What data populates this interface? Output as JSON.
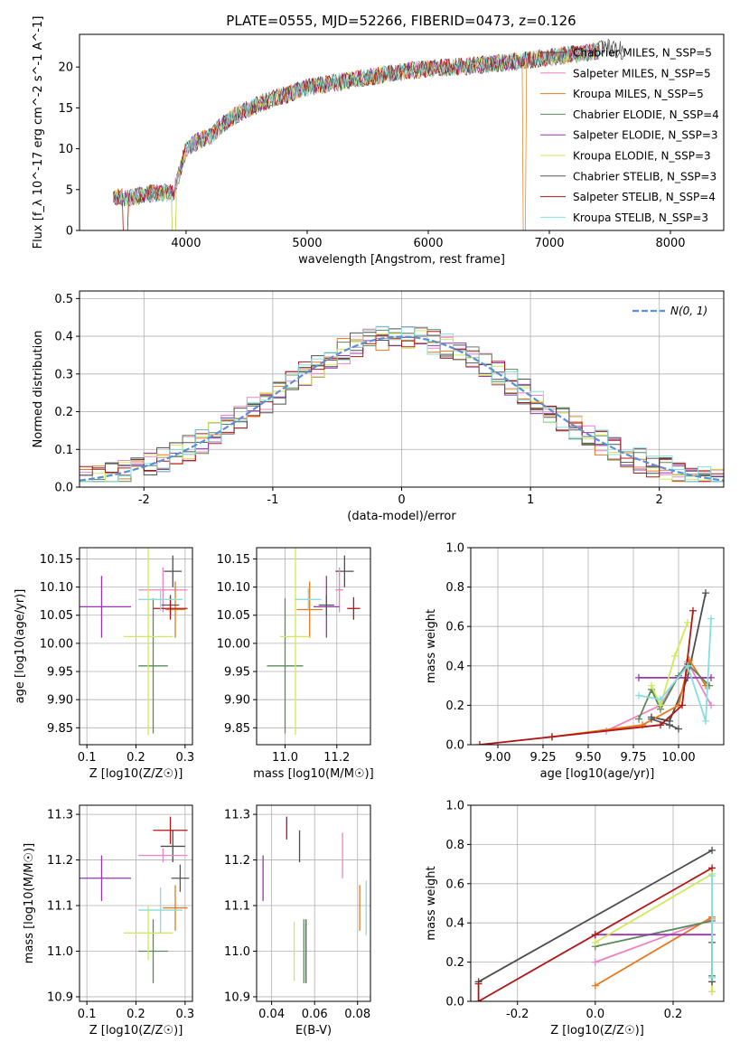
{
  "title": "PLATE=0555, MJD=52266, FIBERID=0473, z=0.126",
  "models": [
    {
      "name": "Chabrier MILES, N_SSP=5",
      "color": "#4d4d4d"
    },
    {
      "name": "Salpeter MILES, N_SSP=5",
      "color": "#ee82c3"
    },
    {
      "name": "Kroupa MILES, N_SSP=5",
      "color": "#e8781c"
    },
    {
      "name": "Chabrier ELODIE, N_SSP=4",
      "color": "#5a8a5a"
    },
    {
      "name": "Salpeter ELODIE, N_SSP=3",
      "color": "#9a34b0"
    },
    {
      "name": "Kroupa ELODIE, N_SSP=3",
      "color": "#d2e85a"
    },
    {
      "name": "Chabrier STELIB, N_SSP=3",
      "color": "#555555"
    },
    {
      "name": "Salpeter STELIB, N_SSP=4",
      "color": "#b01818"
    },
    {
      "name": "Kroupa STELIB, N_SSP=3",
      "color": "#86dede"
    }
  ],
  "labels": {
    "p1_x": "wavelength [Angstrom, rest frame]",
    "p1_y": "Flux [f_λ 10^-17 erg cm^-2 s^-1 A^-1]",
    "p2_x": "(data-model)/error",
    "p2_y": "Normed distribution",
    "p2_legend": "N(0, 1)",
    "age_y": "age [log10(age/yr)]",
    "mass_y": "mass [log10(M/M☉)]",
    "z_x": "Z [log10(Z/Z☉)]",
    "mass_x": "mass [log10(M/M☉)]",
    "ebv_x": "E(B-V)",
    "mw_y": "mass weight",
    "age_x": "age [log10(age/yr)]"
  },
  "chart_data": [
    {
      "type": "line",
      "title": "PLATE=0555, MJD=52266, FIBERID=0473, z=0.126",
      "xlabel": "wavelength [Angstrom, rest frame]",
      "ylabel": "Flux [f_λ 10^-17 erg cm^-2 s^-1 A^-1]",
      "xlim": [
        3120,
        8440
      ],
      "ylim": [
        0,
        24
      ],
      "xticks": [
        4000,
        5000,
        6000,
        7000,
        8000
      ],
      "yticks": [
        0,
        5,
        10,
        15,
        20
      ],
      "x": [
        3400,
        3500,
        3600,
        3700,
        3800,
        3900,
        4000,
        4100,
        4200,
        4300,
        4400,
        4500,
        4600,
        4800,
        5000,
        5200,
        5400,
        5600,
        5800,
        6000,
        6200,
        6400,
        6600,
        6800,
        7000,
        7200,
        7400,
        7500,
        7600
      ],
      "y": [
        4.2,
        4.0,
        4.2,
        4.5,
        4.6,
        4.7,
        10.0,
        11.0,
        11.5,
        13.0,
        14.0,
        14.8,
        15.5,
        16.5,
        17.5,
        18.0,
        18.5,
        19.0,
        19.5,
        19.8,
        20.0,
        20.2,
        20.5,
        20.8,
        21.2,
        21.6,
        22.0,
        22.5,
        22.0
      ],
      "legend": "top-right"
    },
    {
      "type": "histogram",
      "xlabel": "(data-model)/error",
      "ylabel": "Normed distribution",
      "xlim": [
        -2.5,
        2.5
      ],
      "ylim": [
        0,
        0.52
      ],
      "xticks": [
        -2,
        -1,
        0,
        1,
        2
      ],
      "yticks": [
        0.0,
        0.1,
        0.2,
        0.3,
        0.4,
        0.5
      ],
      "legend_entry": "N(0, 1)",
      "curve": "gaussian N(0,1)"
    },
    {
      "type": "scatter-errorbar",
      "xlabel": "Z [log10(Z/Z☉)]",
      "ylabel": "age [log10(age/yr)]",
      "xlim": [
        0.085,
        0.315
      ],
      "ylim": [
        9.82,
        10.17
      ],
      "xticks": [
        0.1,
        0.2,
        0.3
      ],
      "yticks": [
        9.85,
        9.9,
        9.95,
        10.0,
        10.05,
        10.1,
        10.15
      ],
      "points": [
        {
          "m": 0,
          "x": 0.275,
          "y": 10.128,
          "xe": 0.018,
          "ye": 0.028
        },
        {
          "m": 1,
          "x": 0.255,
          "y": 10.095,
          "xe": 0.05,
          "ye": 0.04
        },
        {
          "m": 2,
          "x": 0.28,
          "y": 10.06,
          "xe": 0.02,
          "ye": 0.05
        },
        {
          "m": 3,
          "x": 0.235,
          "y": 9.96,
          "xe": 0.03,
          "ye": 0.12
        },
        {
          "m": 4,
          "x": 0.13,
          "y": 10.065,
          "xe": 0.06,
          "ye": 0.055
        },
        {
          "m": 5,
          "x": 0.225,
          "y": 10.012,
          "xe": 0.05,
          "ye": 0.175
        },
        {
          "m": 6,
          "x": 0.27,
          "y": 10.068,
          "xe": 0.018,
          "ye": 0.018
        },
        {
          "m": 7,
          "x": 0.27,
          "y": 10.062,
          "xe": 0.035,
          "ye": 0.02
        },
        {
          "m": 8,
          "x": 0.25,
          "y": 10.078,
          "xe": 0.045,
          "ye": 0.02
        }
      ]
    },
    {
      "type": "scatter-errorbar",
      "xlabel": "mass [log10(M/M☉)]",
      "ylabel": "",
      "xlim": [
        10.89,
        11.33
      ],
      "ylim": [
        9.82,
        10.17
      ],
      "xticks": [
        11.0,
        11.2
      ],
      "yticks": [
        9.85,
        9.9,
        9.95,
        10.0,
        10.05,
        10.1,
        10.15
      ],
      "points": [
        {
          "m": 0,
          "x": 11.23,
          "y": 10.128,
          "xe": 0.035,
          "ye": 0.028
        },
        {
          "m": 1,
          "x": 11.21,
          "y": 10.095,
          "xe": 0.015,
          "ye": 0.04
        },
        {
          "m": 2,
          "x": 11.095,
          "y": 10.06,
          "xe": 0.05,
          "ye": 0.05
        },
        {
          "m": 3,
          "x": 11.0,
          "y": 9.96,
          "xe": 0.07,
          "ye": 0.12
        },
        {
          "m": 4,
          "x": 11.16,
          "y": 10.065,
          "xe": 0.05,
          "ye": 0.055
        },
        {
          "m": 5,
          "x": 11.04,
          "y": 10.012,
          "xe": 0.06,
          "ye": 0.175
        },
        {
          "m": 6,
          "x": 11.16,
          "y": 10.068,
          "xe": 0.03,
          "ye": 0.018
        },
        {
          "m": 7,
          "x": 11.265,
          "y": 10.062,
          "xe": 0.025,
          "ye": 0.02
        },
        {
          "m": 8,
          "x": 11.09,
          "y": 10.078,
          "xe": 0.05,
          "ye": 0.02
        }
      ]
    },
    {
      "type": "line",
      "xlabel": "age [log10(age/yr)]",
      "ylabel": "mass weight",
      "xlim": [
        8.85,
        10.25
      ],
      "ylim": [
        0,
        1
      ],
      "xticks": [
        9.0,
        9.25,
        9.5,
        9.75,
        10.0
      ],
      "yticks": [
        0.0,
        0.2,
        0.4,
        0.6,
        0.8,
        1.0
      ],
      "series": [
        {
          "m": 0,
          "x": [
            9.85,
            9.95,
            10.05,
            10.15
          ],
          "y": [
            0.14,
            0.12,
            0.34,
            0.77
          ]
        },
        {
          "m": 1,
          "x": [
            9.6,
            9.9,
            10.05,
            10.18
          ],
          "y": [
            0.07,
            0.2,
            0.42,
            0.2
          ]
        },
        {
          "m": 2,
          "x": [
            9.3,
            9.8,
            10.0,
            10.06,
            10.15
          ],
          "y": [
            0.04,
            0.1,
            0.2,
            0.43,
            0.3
          ]
        },
        {
          "m": 3,
          "x": [
            9.78,
            9.85,
            9.9,
            10.0,
            10.05,
            10.17
          ],
          "y": [
            0.13,
            0.28,
            0.18,
            0.35,
            0.41,
            0.3
          ]
        },
        {
          "m": 4,
          "x": [
            9.78,
            10.18
          ],
          "y": [
            0.34,
            0.34
          ]
        },
        {
          "m": 5,
          "x": [
            9.85,
            9.9,
            9.98,
            10.05
          ],
          "y": [
            0.3,
            0.2,
            0.45,
            0.62
          ]
        },
        {
          "m": 6,
          "x": [
            9.85,
            9.95,
            10.0
          ],
          "y": [
            0.13,
            0.1,
            0.08
          ]
        },
        {
          "m": 7,
          "x": [
            8.9,
            9.3,
            9.9,
            10.02,
            10.08
          ],
          "y": [
            0.0,
            0.04,
            0.1,
            0.2,
            0.68
          ]
        },
        {
          "m": 8,
          "x": [
            9.78,
            9.9,
            10.05,
            10.15,
            10.18
          ],
          "y": [
            0.25,
            0.23,
            0.4,
            0.12,
            0.64
          ]
        }
      ]
    },
    {
      "type": "scatter-errorbar",
      "xlabel": "Z [log10(Z/Z☉)]",
      "ylabel": "mass [log10(M/M☉)]",
      "xlim": [
        0.085,
        0.315
      ],
      "ylim": [
        10.89,
        11.32
      ],
      "xticks": [
        0.1,
        0.2,
        0.3
      ],
      "yticks": [
        10.9,
        11.0,
        11.1,
        11.2,
        11.3
      ],
      "points": [
        {
          "m": 0,
          "x": 0.275,
          "y": 11.23,
          "xe": 0.025,
          "ye": 0.035
        },
        {
          "m": 1,
          "x": 0.255,
          "y": 11.21,
          "xe": 0.05,
          "ye": 0.015
        },
        {
          "m": 2,
          "x": 0.28,
          "y": 11.095,
          "xe": 0.025,
          "ye": 0.05
        },
        {
          "m": 3,
          "x": 0.235,
          "y": 11.0,
          "xe": 0.03,
          "ye": 0.07
        },
        {
          "m": 4,
          "x": 0.13,
          "y": 11.16,
          "xe": 0.06,
          "ye": 0.05
        },
        {
          "m": 5,
          "x": 0.225,
          "y": 11.04,
          "xe": 0.05,
          "ye": 0.06
        },
        {
          "m": 6,
          "x": 0.29,
          "y": 11.16,
          "xe": 0.018,
          "ye": 0.03
        },
        {
          "m": 7,
          "x": 0.27,
          "y": 11.265,
          "xe": 0.035,
          "ye": 0.03
        },
        {
          "m": 8,
          "x": 0.25,
          "y": 11.09,
          "xe": 0.045,
          "ye": 0.05
        }
      ]
    },
    {
      "type": "scatter-errorbar",
      "xlabel": "E(B-V)",
      "ylabel": "",
      "xlim": [
        0.033,
        0.086
      ],
      "ylim": [
        10.89,
        11.32
      ],
      "xticks": [
        0.04,
        0.06,
        0.08
      ],
      "yticks": [
        10.9,
        11.0,
        11.1,
        11.2,
        11.3
      ],
      "points": [
        {
          "m": 0,
          "x": 0.053,
          "y": 11.23,
          "xe": 0.0,
          "ye": 0.035
        },
        {
          "m": 1,
          "x": 0.073,
          "y": 11.21,
          "xe": 0.0,
          "ye": 0.05
        },
        {
          "m": 2,
          "x": 0.081,
          "y": 11.095,
          "xe": 0.0,
          "ye": 0.05
        },
        {
          "m": 3,
          "x": 0.055,
          "y": 11.0,
          "xe": 0.0,
          "ye": 0.07
        },
        {
          "m": 4,
          "x": 0.036,
          "y": 11.16,
          "xe": 0.0,
          "ye": 0.05
        },
        {
          "m": 5,
          "x": 0.0505,
          "y": 11.0,
          "xe": 0.0,
          "ye": 0.065
        },
        {
          "m": 6,
          "x": 0.056,
          "y": 11.0,
          "xe": 0.0,
          "ye": 0.07
        },
        {
          "m": 7,
          "x": 0.047,
          "y": 11.27,
          "xe": 0.0,
          "ye": 0.025
        },
        {
          "m": 8,
          "x": 0.084,
          "y": 11.095,
          "xe": 0.0,
          "ye": 0.06
        }
      ]
    },
    {
      "type": "line",
      "xlabel": "Z [log10(Z/Z☉)]",
      "ylabel": "mass weight",
      "xlim": [
        -0.32,
        0.33
      ],
      "ylim": [
        0,
        1
      ],
      "xticks": [
        -0.2,
        0.0,
        0.2
      ],
      "yticks": [
        0.0,
        0.2,
        0.4,
        0.6,
        0.8,
        1.0
      ],
      "series": [
        {
          "m": 0,
          "x": [
            -0.3,
            0.3
          ],
          "y": [
            0.1,
            0.77
          ]
        },
        {
          "m": 1,
          "x": [
            0.0,
            0.3,
            0.3
          ],
          "y": [
            0.2,
            0.42,
            0.05
          ]
        },
        {
          "m": 2,
          "x": [
            0.0,
            0.3,
            0.3
          ],
          "y": [
            0.08,
            0.43,
            0.1
          ]
        },
        {
          "m": 3,
          "x": [
            0.0,
            0.3,
            0.3
          ],
          "y": [
            0.28,
            0.41,
            0.13
          ]
        },
        {
          "m": 4,
          "x": [
            0.0,
            0.3
          ],
          "y": [
            0.34,
            0.34
          ]
        },
        {
          "m": 5,
          "x": [
            0.0,
            0.3,
            0.3
          ],
          "y": [
            0.3,
            0.65,
            0.05
          ]
        },
        {
          "m": 6,
          "x": [
            0.3,
            0.3
          ],
          "y": [
            0.1,
            0.3
          ]
        },
        {
          "m": 7,
          "x": [
            -0.3,
            -0.3,
            0.0,
            0.3
          ],
          "y": [
            0.09,
            0.0,
            0.34,
            0.68
          ]
        },
        {
          "m": 8,
          "x": [
            0.3,
            0.3
          ],
          "y": [
            0.12,
            0.64
          ]
        }
      ]
    }
  ]
}
